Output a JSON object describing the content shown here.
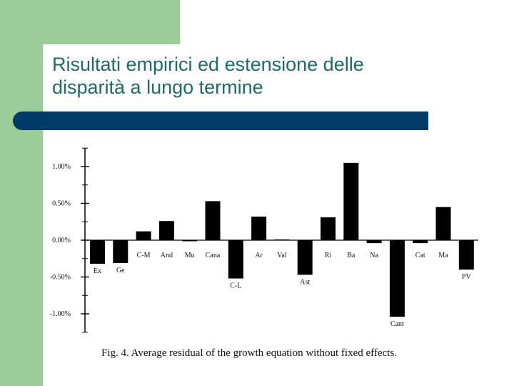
{
  "slide": {
    "title_line1": "Risultati empirici ed estensione delle",
    "title_line2": "disparità a lungo termine",
    "accent_green": "#9ccc9a",
    "title_color": "#1a6e63",
    "bar_color": "#003a66"
  },
  "chart_data": {
    "type": "bar",
    "caption": "Fig. 4. Average residual of the growth equation without fixed effects.",
    "ylim": [
      -1.25,
      1.25
    ],
    "yticks": [
      {
        "value": 1.0,
        "label": "1.00%"
      },
      {
        "value": 0.5,
        "label": "0.50%"
      },
      {
        "value": 0.0,
        "label": "0.00%"
      },
      {
        "value": -0.5,
        "label": "-0.50%"
      },
      {
        "value": -1.0,
        "label": "-1.00%"
      }
    ],
    "categories": [
      "Ex",
      "Ge",
      "C-M",
      "And",
      "Mu",
      "Cana",
      "C-L",
      "Ar",
      "Val",
      "Ast",
      "Ri",
      "Ba",
      "Na",
      "Cant",
      "Cat",
      "Ma",
      "PV"
    ],
    "values": [
      -0.32,
      -0.31,
      0.12,
      0.26,
      0.0,
      0.53,
      -0.52,
      0.32,
      0.01,
      -0.47,
      0.31,
      1.05,
      -0.04,
      -1.04,
      -0.04,
      0.45,
      -0.4
    ],
    "bar_color": "#000000"
  }
}
